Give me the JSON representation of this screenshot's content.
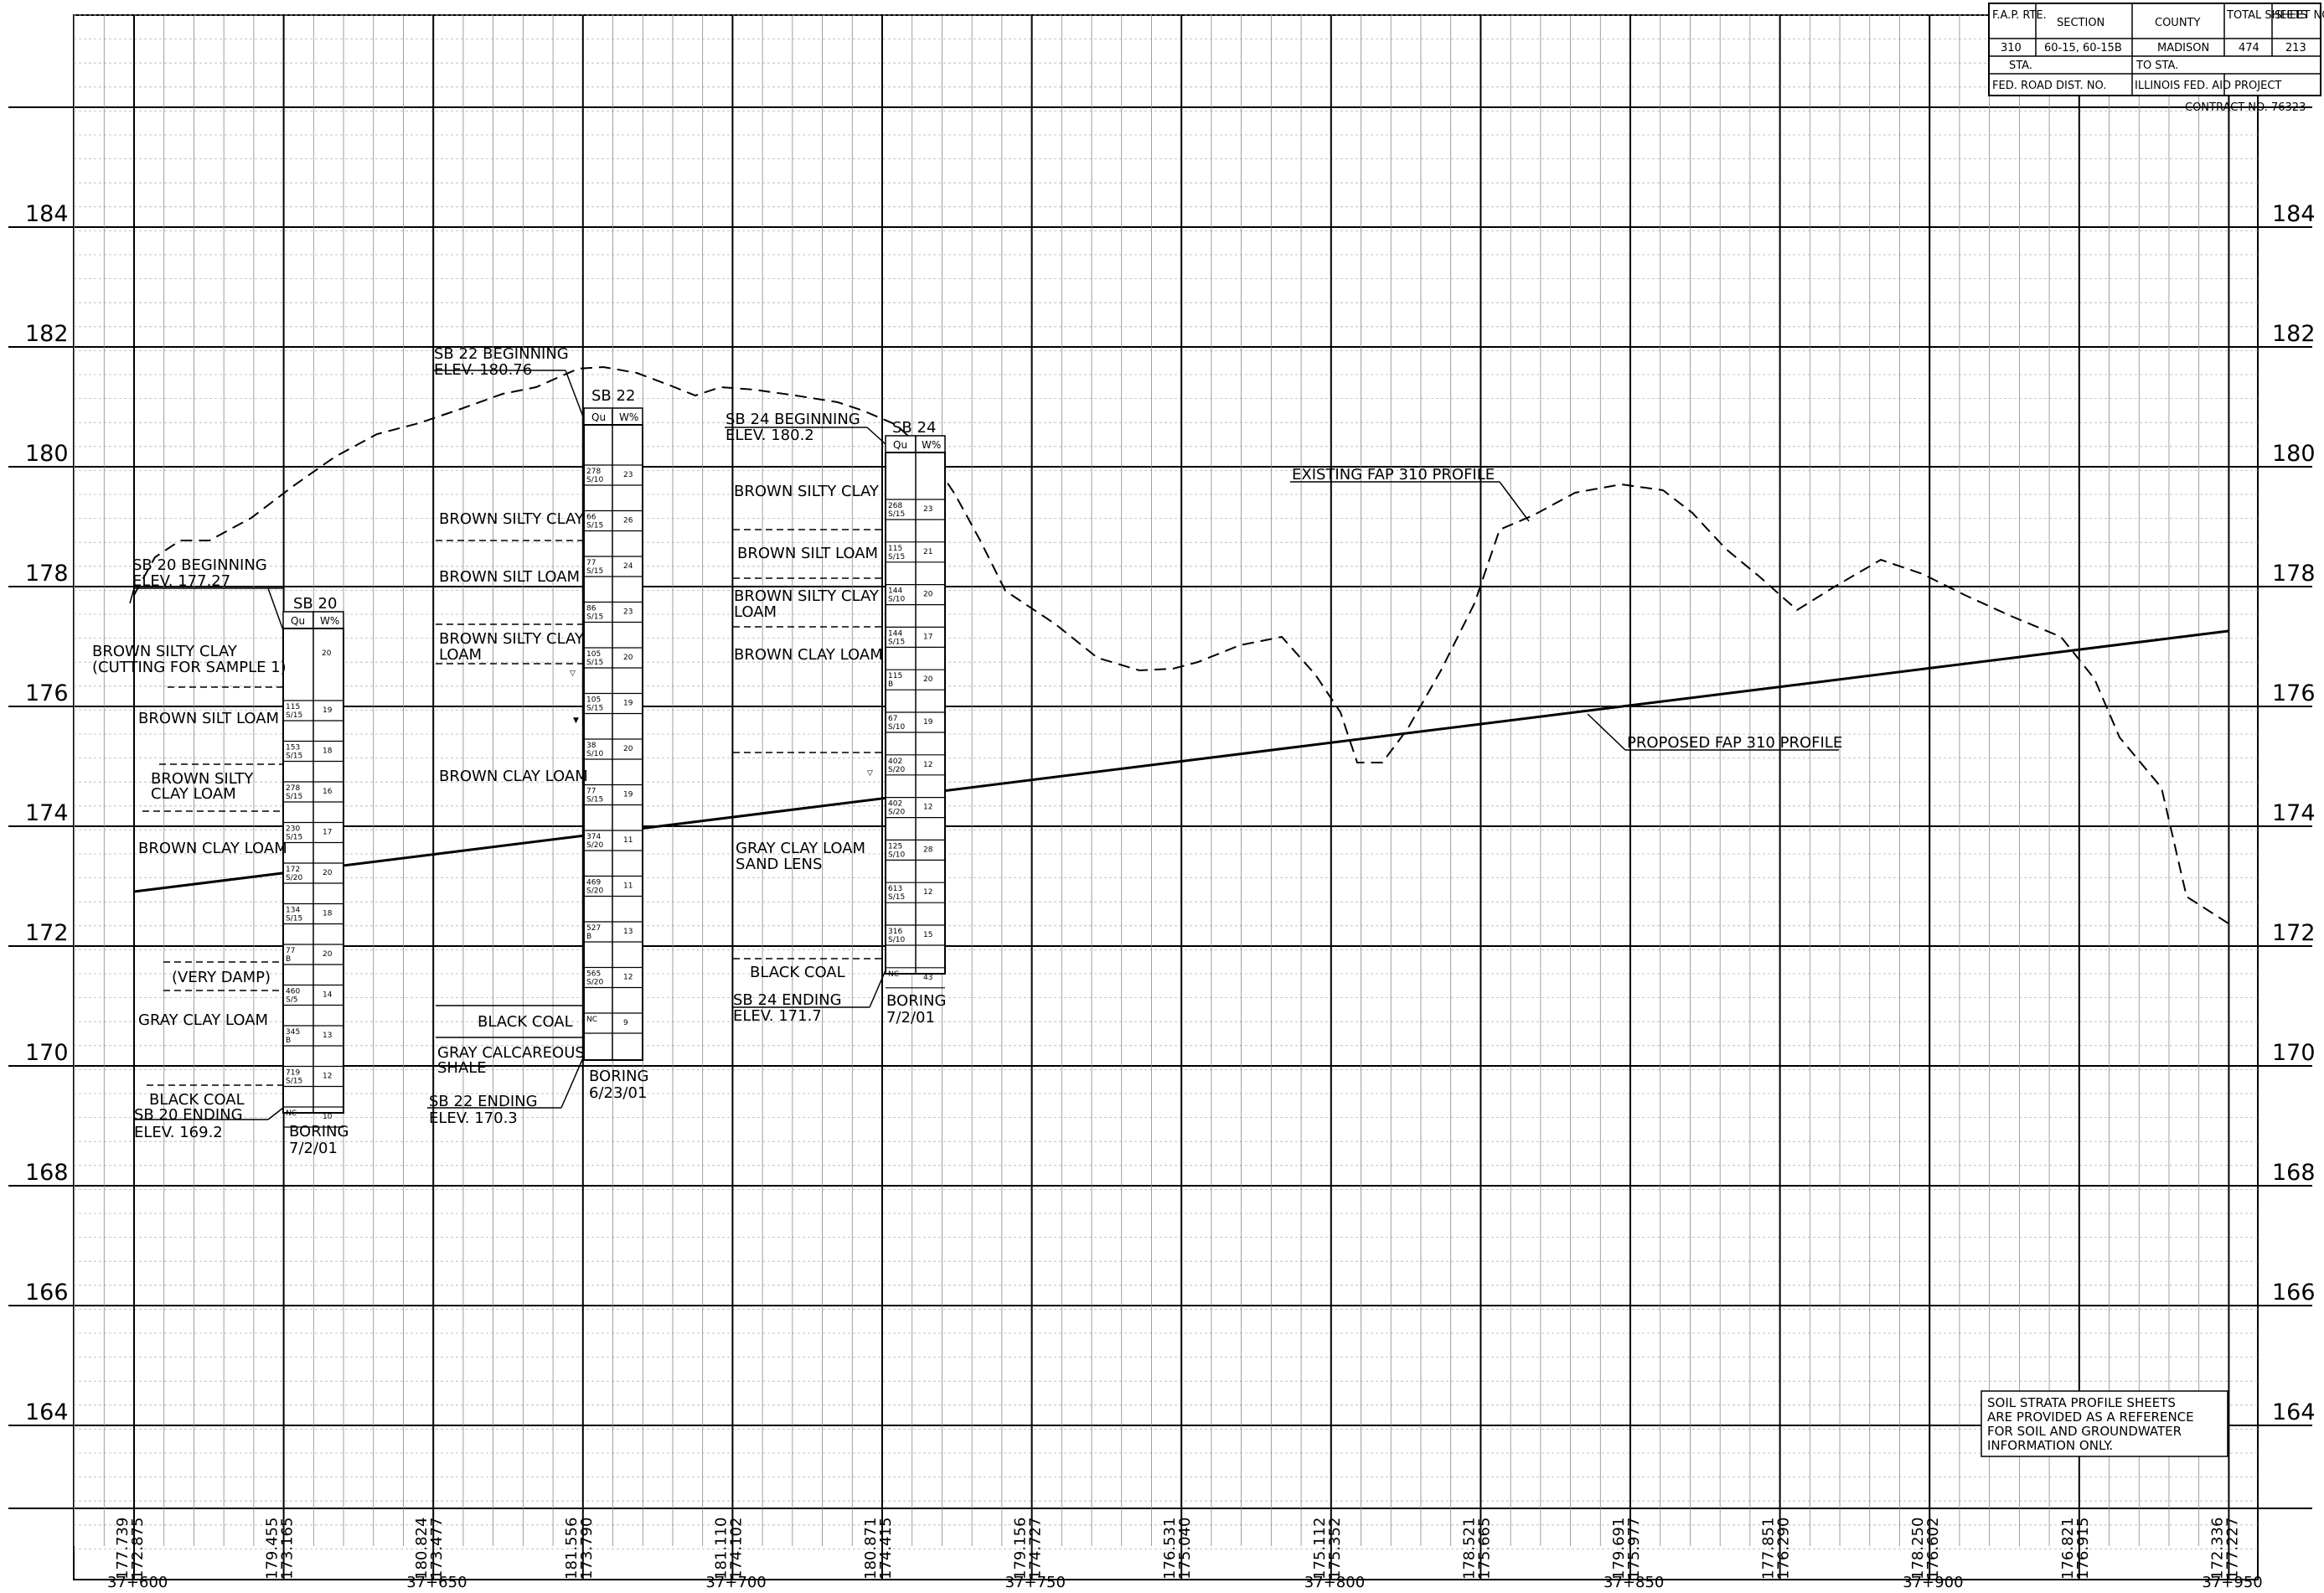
{
  "title_block": {
    "headers": [
      "F.A.P. RTE.",
      "SECTION",
      "COUNTY",
      "TOTAL SHEETS",
      "SHEET NO."
    ],
    "values": [
      "310",
      "60-15, 60-15B",
      "MADISON",
      "474",
      "213"
    ],
    "sta_label": "STA.",
    "to_sta_label": "TO STA.",
    "fed_road_dist": "FED. ROAD DIST. NO.",
    "project_label": "ILLINOIS FED. AID PROJECT",
    "contract": "CONTRACT NO. 76323"
  },
  "elevation_labels": [
    "184",
    "182",
    "180",
    "178",
    "176",
    "174",
    "172",
    "170",
    "168",
    "166",
    "164"
  ],
  "stations": [
    "37+600",
    "37+650",
    "37+700",
    "37+750",
    "37+800",
    "37+850",
    "37+900",
    "37+950"
  ],
  "station_elevations": [
    {
      "existing": "177.739",
      "proposed": "172.875"
    },
    {
      "existing": "179.455",
      "proposed": "173.165"
    },
    {
      "existing": "180.824",
      "proposed": "173.477"
    },
    {
      "existing": "181.556",
      "proposed": "173.790"
    },
    {
      "existing": "181.110",
      "proposed": "174.102"
    },
    {
      "existing": "180.871",
      "proposed": "174.415"
    },
    {
      "existing": "179.156",
      "proposed": "174.727"
    },
    {
      "existing": "176.531",
      "proposed": "175.040"
    },
    {
      "existing": "175.112",
      "proposed": "175.352"
    },
    {
      "existing": "178.521",
      "proposed": "175.665"
    },
    {
      "existing": "179.691",
      "proposed": "175.977"
    },
    {
      "existing": "177.851",
      "proposed": "176.290"
    },
    {
      "existing": "178.250",
      "proposed": "176.602"
    },
    {
      "existing": "176.821",
      "proposed": "176.915"
    },
    {
      "existing": "172.336",
      "proposed": "177.227"
    }
  ],
  "profiles": {
    "existing_label": "EXISTING FAP 310 PROFILE",
    "proposed_label": "PROPOSED FAP 310 PROFILE"
  },
  "borings": {
    "sb20": {
      "name": "SB 20",
      "col_qu": "Qu",
      "col_w": "W%",
      "begin": "SB 20 BEGINNING",
      "begin_elev": "ELEV. 177.27",
      "end": "SB 20 ENDING",
      "end_elev": "ELEV. 169.2",
      "date_label": "BORING",
      "date": "7/2/01",
      "top_w": "20",
      "samples": [
        {
          "qu": "115",
          "qu2": "S/15",
          "w": "19"
        },
        {
          "qu": "153",
          "qu2": "S/15",
          "w": "18"
        },
        {
          "qu": "278",
          "qu2": "S/15",
          "w": "16"
        },
        {
          "qu": "230",
          "qu2": "S/15",
          "w": "17"
        },
        {
          "qu": "172",
          "qu2": "S/20",
          "w": "20"
        },
        {
          "qu": "134",
          "qu2": "S/15",
          "w": "18"
        },
        {
          "qu": "77",
          "qu2": "B",
          "w": "20"
        },
        {
          "qu": "460",
          "qu2": "S/5",
          "w": "14"
        },
        {
          "qu": "345",
          "qu2": "B",
          "w": "13"
        },
        {
          "qu": "719",
          "qu2": "S/15",
          "w": "12"
        },
        {
          "qu": "NC",
          "qu2": "",
          "w": "10"
        }
      ],
      "strata": [
        "BROWN SILTY CLAY",
        "(CUTTING FOR SAMPLE 1)",
        "BROWN SILT LOAM",
        "BROWN SILTY",
        "CLAY LOAM",
        "BROWN CLAY LOAM",
        "(VERY DAMP)",
        "GRAY CLAY LOAM",
        "BLACK COAL"
      ]
    },
    "sb22": {
      "name": "SB 22",
      "col_qu": "Qu",
      "col_w": "W%",
      "begin": "SB 22 BEGINNING",
      "begin_elev": "ELEV. 180.76",
      "end": "SB 22 ENDING",
      "end_elev": "ELEV. 170.3",
      "date_label": "BORING",
      "date": "6/23/01",
      "samples": [
        {
          "qu": "278",
          "qu2": "S/10",
          "w": "23"
        },
        {
          "qu": "66",
          "qu2": "S/15",
          "w": "26"
        },
        {
          "qu": "77",
          "qu2": "S/15",
          "w": "24"
        },
        {
          "qu": "86",
          "qu2": "S/15",
          "w": "23"
        },
        {
          "qu": "105",
          "qu2": "S/15",
          "w": "20"
        },
        {
          "qu": "105",
          "qu2": "S/15",
          "w": "19"
        },
        {
          "qu": "38",
          "qu2": "S/10",
          "w": "20"
        },
        {
          "qu": "77",
          "qu2": "S/15",
          "w": "19"
        },
        {
          "qu": "374",
          "qu2": "S/20",
          "w": "11"
        },
        {
          "qu": "469",
          "qu2": "S/20",
          "w": "11"
        },
        {
          "qu": "527",
          "qu2": "B",
          "w": "13"
        },
        {
          "qu": "565",
          "qu2": "S/20",
          "w": "12"
        },
        {
          "qu": "NC",
          "qu2": "",
          "w": "9"
        }
      ],
      "strata": [
        "BROWN SILTY CLAY",
        "BROWN SILT LOAM",
        "BROWN SILTY CLAY",
        "LOAM",
        "BROWN CLAY LOAM",
        "BLACK COAL",
        "GRAY CALCAREOUS",
        "SHALE"
      ]
    },
    "sb24": {
      "name": "SB 24",
      "col_qu": "Qu",
      "col_w": "W%",
      "begin": "SB 24 BEGINNING",
      "begin_elev": "ELEV. 180.2",
      "end": "SB 24 ENDING",
      "end_elev": "ELEV. 171.7",
      "date_label": "BORING",
      "date": "7/2/01",
      "samples": [
        {
          "qu": "268",
          "qu2": "S/15",
          "w": "23"
        },
        {
          "qu": "115",
          "qu2": "S/15",
          "w": "21"
        },
        {
          "qu": "144",
          "qu2": "S/10",
          "w": "20"
        },
        {
          "qu": "144",
          "qu2": "S/15",
          "w": "17"
        },
        {
          "qu": "115",
          "qu2": "B",
          "w": "20"
        },
        {
          "qu": "67",
          "qu2": "S/10",
          "w": "19"
        },
        {
          "qu": "402",
          "qu2": "S/20",
          "w": "12"
        },
        {
          "qu": "402",
          "qu2": "S/20",
          "w": "12"
        },
        {
          "qu": "125",
          "qu2": "S/10",
          "w": "28"
        },
        {
          "qu": "613",
          "qu2": "S/15",
          "w": "12"
        },
        {
          "qu": "316",
          "qu2": "S/10",
          "w": "15"
        },
        {
          "qu": "NC",
          "qu2": "",
          "w": "43"
        }
      ],
      "strata": [
        "BROWN SILTY CLAY",
        "BROWN SILT LOAM",
        "BROWN SILTY CLAY",
        "LOAM",
        "BROWN CLAY LOAM",
        "GRAY CLAY LOAM",
        "SAND LENS",
        "BLACK COAL"
      ]
    }
  },
  "disclaimer": [
    "SOIL STRATA PROFILE SHEETS",
    "ARE PROVIDED AS A REFERENCE",
    "FOR SOIL AND GROUNDWATER",
    "INFORMATION ONLY."
  ]
}
